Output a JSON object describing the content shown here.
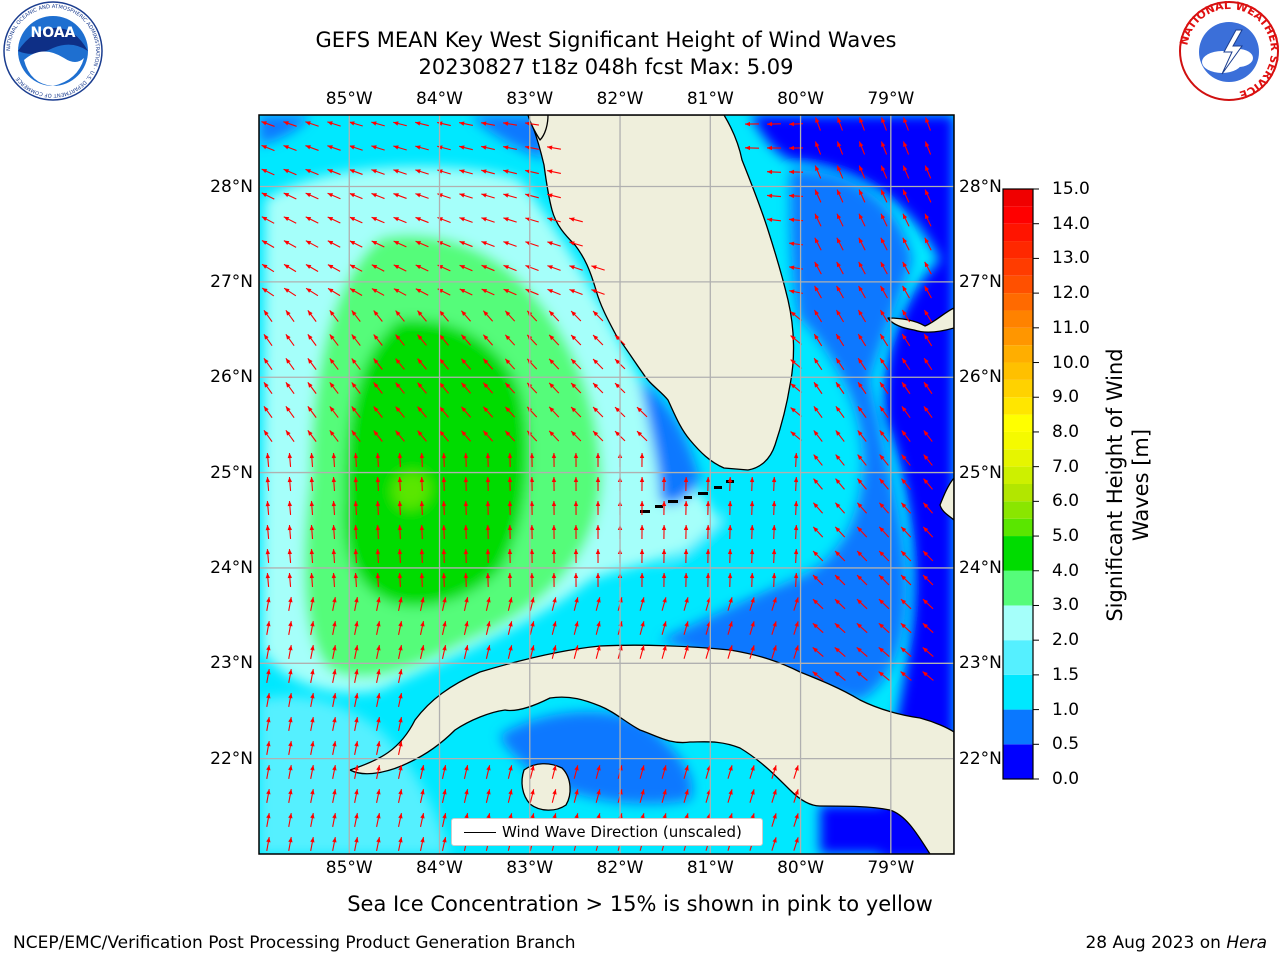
{
  "title_line1": "GEFS MEAN Key West Significant Height of Wind Waves",
  "title_line2": "20230827 t18z 048h fcst   Max: 5.09",
  "axes": {
    "lon_ticks": [
      "85°W",
      "84°W",
      "83°W",
      "82°W",
      "81°W",
      "80°W",
      "79°W"
    ],
    "lat_ticks": [
      "28°N",
      "27°N",
      "26°N",
      "25°N",
      "24°N",
      "23°N",
      "22°N"
    ],
    "lon_range": [
      -86,
      -78.3
    ],
    "lat_range": [
      21,
      28.75
    ],
    "grid": true
  },
  "colorbar": {
    "label": "Significant Height of Wind Waves [m]",
    "ticks": [
      "15.0",
      "14.0",
      "13.0",
      "12.0",
      "11.0",
      "10.0",
      "9.0",
      "8.0",
      "7.0",
      "6.0",
      "5.0",
      "4.0",
      "3.0",
      "2.0",
      "1.5",
      "1.0",
      "0.5",
      "0.0"
    ],
    "levels": [
      0,
      0.5,
      1.0,
      1.5,
      2.0,
      3.0,
      4.0,
      5.0,
      5.5,
      6.0,
      6.5,
      7.0,
      7.5,
      8.0,
      8.5,
      9.0,
      9.5,
      10.0,
      10.5,
      11.0,
      11.5,
      12.0,
      12.5,
      13.0,
      13.5,
      14.0,
      14.5,
      15.0
    ],
    "colors": [
      "#0000ff",
      "#0a78ff",
      "#00e8ff",
      "#55f0ff",
      "#a5fffa",
      "#55fc7a",
      "#00dc00",
      "#5ae600",
      "#8ae600",
      "#b2e600",
      "#cdf000",
      "#e6f500",
      "#f5fa00",
      "#ffff00",
      "#ffe600",
      "#ffd200",
      "#ffc000",
      "#ffae00",
      "#ff9600",
      "#ff8200",
      "#ff6a00",
      "#ff5000",
      "#ff3c00",
      "#ff2800",
      "#ff1400",
      "#ff0000",
      "#f00000"
    ]
  },
  "legend": {
    "entry": "Wind Wave Direction (unscaled)",
    "placement": "lower-center"
  },
  "colors": {
    "land": "#efefdc",
    "coast": "#000000",
    "arrows": "#ff0000",
    "grid": "#b0b0b0"
  },
  "logos": {
    "noaa": {
      "text": "NOAA",
      "ring_text": "NATIONAL OCEANIC AND ATMOSPHERIC ADMINISTRATION · U.S. DEPARTMENT OF COMMERCE"
    },
    "nws": {
      "ring_text": "NATIONAL WEATHER SERVICE"
    }
  },
  "sea_ice_note": "Sea Ice Concentration > 15% is shown in pink to yellow",
  "footer_left": "NCEP/EMC/Verification Post Processing Product Generation Branch",
  "footer_right_prefix": "28 Aug 2023 on ",
  "footer_right_host": "Hera"
}
